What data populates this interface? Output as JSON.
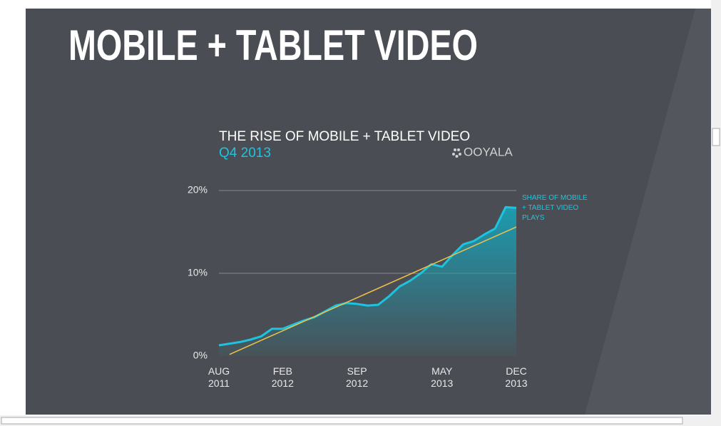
{
  "slide_title": "MOBILE + TABLET VIDEO",
  "chart_data": {
    "type": "area",
    "title": "THE RISE OF MOBILE + TABLET VIDEO",
    "subtitle": "Q4 2013",
    "logo": "OOYALA",
    "categories": [
      "AUG 2011",
      null,
      null,
      null,
      null,
      null,
      "FEB 2012",
      null,
      null,
      null,
      null,
      null,
      null,
      "SEP 2012",
      null,
      null,
      null,
      null,
      null,
      null,
      null,
      "MAY 2013",
      null,
      null,
      null,
      null,
      null,
      null,
      "DEC 2013"
    ],
    "series": [
      {
        "name": "SHARE OF MOBILE + TABLET VIDEO PLAYS",
        "color": "#1cc4e0",
        "values": [
          1.3,
          1.5,
          1.7,
          2.0,
          2.4,
          3.3,
          3.3,
          3.8,
          4.3,
          4.7,
          5.4,
          6.1,
          6.4,
          6.3,
          6.1,
          6.2,
          7.2,
          8.4,
          9.1,
          10.0,
          11.1,
          10.8,
          12.2,
          13.5,
          13.9,
          14.7,
          15.4,
          18.0,
          17.9
        ]
      }
    ],
    "trendline": {
      "x": [
        1,
        28
      ],
      "values": [
        0.2,
        15.6
      ],
      "color": "#f0c24a"
    },
    "ylim": [
      0,
      20
    ],
    "yticks": [
      {
        "value": 0,
        "label": "0%"
      },
      {
        "value": 10,
        "label": "10%"
      },
      {
        "value": 20,
        "label": "20%"
      }
    ],
    "grid": true
  }
}
